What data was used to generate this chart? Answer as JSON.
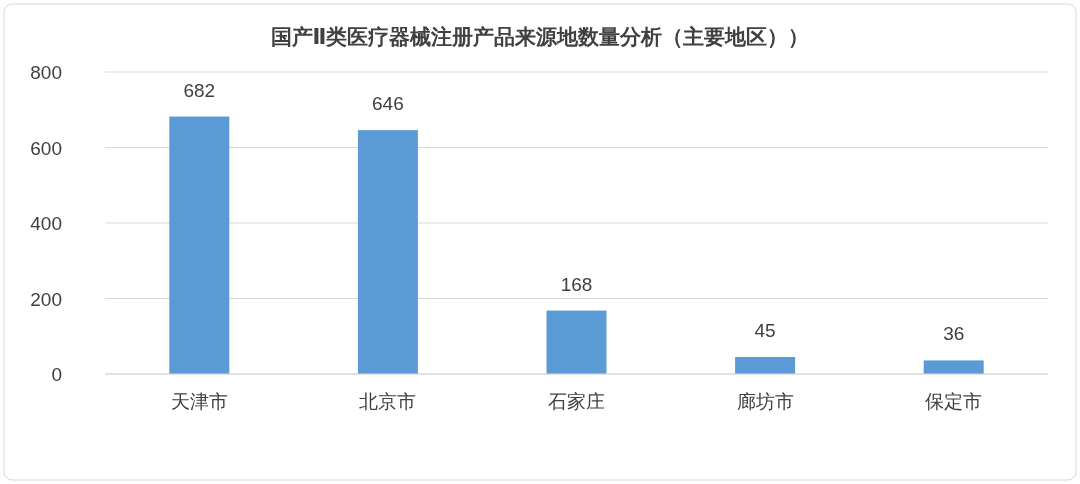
{
  "chart_data": {
    "type": "bar",
    "title": "国产Ⅱ类医疗器械注册产品来源地数量分析（主要地区））",
    "categories": [
      "天津市",
      "北京市",
      "石家庄",
      "廊坊市",
      "保定市"
    ],
    "values": [
      682,
      646,
      168,
      45,
      36
    ],
    "color": "#5b9bd5",
    "ylim": [
      0,
      800
    ],
    "yticks": [
      0,
      200,
      400,
      600,
      800
    ],
    "grid": "y",
    "data_labels": true
  }
}
